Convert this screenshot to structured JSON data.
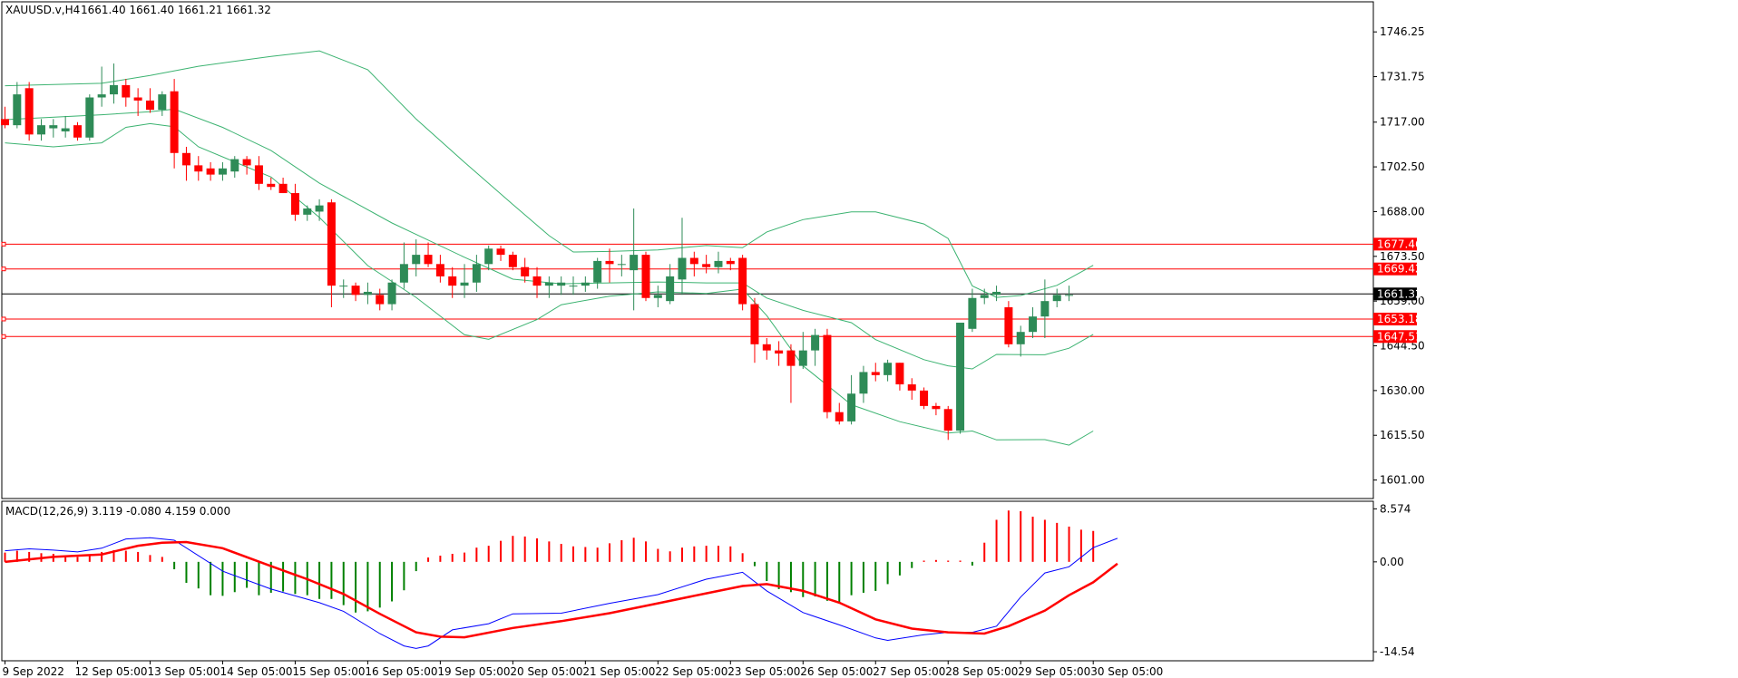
{
  "header": {
    "symbol": "XAUUSD.v,H4",
    "ohlc": "1661.40 1661.40 1661.21 1661.32"
  },
  "macd_header": {
    "label": "MACD(12,26,9) 3.119 -0.080 4.159 0.000"
  },
  "colors": {
    "bull": "#2e8b57",
    "bear": "#ff0000",
    "bands": "#3cb371",
    "hlines": "#ff0000",
    "price_line": "#000000",
    "macd_line": "#0000ff",
    "signal_line": "#ff0000",
    "hist_pos": "#ff0000",
    "hist_neg": "#008000"
  },
  "chart_data": [
    {
      "type": "candlestick",
      "title": "XAUUSD.v,H4",
      "ylim": [
        1595.0,
        1756.0
      ],
      "y_ticks": [
        "1746.25",
        "1731.75",
        "1717.00",
        "1702.50",
        "1688.00",
        "1673.50",
        "1659.00",
        "1644.50",
        "1630.00",
        "1615.50",
        "1601.00"
      ],
      "x_labels": [
        "9 Sep 2022",
        "12 Sep 05:00",
        "13 Sep 05:00",
        "14 Sep 05:00",
        "15 Sep 05:00",
        "16 Sep 05:00",
        "19 Sep 05:00",
        "20 Sep 05:00",
        "21 Sep 05:00",
        "22 Sep 05:00",
        "23 Sep 05:00",
        "26 Sep 05:00",
        "27 Sep 05:00",
        "28 Sep 05:00",
        "29 Sep 05:00",
        "30 Sep 05:00"
      ],
      "candles": [
        [
          1718,
          1722,
          1715,
          1716
        ],
        [
          1716,
          1730,
          1715,
          1726
        ],
        [
          1728,
          1730,
          1711,
          1713
        ],
        [
          1713,
          1718,
          1711,
          1716
        ],
        [
          1715,
          1718,
          1712,
          1716
        ],
        [
          1714,
          1719,
          1712,
          1715
        ],
        [
          1716,
          1717,
          1711,
          1712
        ],
        [
          1712,
          1726,
          1711,
          1725
        ],
        [
          1725,
          1735,
          1722,
          1726
        ],
        [
          1726,
          1736,
          1723,
          1729
        ],
        [
          1729,
          1731,
          1722,
          1725
        ],
        [
          1725,
          1728,
          1719,
          1724
        ],
        [
          1724,
          1728,
          1720,
          1721
        ],
        [
          1721,
          1727,
          1719,
          1726
        ],
        [
          1727,
          1731,
          1702,
          1707
        ],
        [
          1707,
          1709,
          1698,
          1703
        ],
        [
          1703,
          1706,
          1698,
          1701
        ],
        [
          1702,
          1704,
          1698,
          1700
        ],
        [
          1700,
          1704,
          1698,
          1702
        ],
        [
          1701,
          1706,
          1699,
          1705
        ],
        [
          1705,
          1706,
          1700,
          1703
        ],
        [
          1703,
          1706,
          1695,
          1697
        ],
        [
          1697,
          1699,
          1695,
          1696
        ],
        [
          1697,
          1699,
          1694,
          1694
        ],
        [
          1694,
          1697,
          1685,
          1687
        ],
        [
          1687,
          1690,
          1685,
          1689
        ],
        [
          1688,
          1692,
          1685,
          1690
        ],
        [
          1691,
          1692,
          1657,
          1664
        ],
        [
          1664,
          1666,
          1660,
          1664
        ],
        [
          1664,
          1665,
          1659,
          1661
        ],
        [
          1661,
          1665,
          1658,
          1662
        ],
        [
          1661,
          1663,
          1656,
          1658
        ],
        [
          1658,
          1666,
          1656,
          1665
        ],
        [
          1665,
          1678,
          1663,
          1671
        ],
        [
          1671,
          1679,
          1667,
          1674
        ],
        [
          1674,
          1678,
          1670,
          1671
        ],
        [
          1671,
          1674,
          1665,
          1667
        ],
        [
          1667,
          1670,
          1660,
          1664
        ],
        [
          1664,
          1671,
          1660,
          1665
        ],
        [
          1665,
          1674,
          1662,
          1671
        ],
        [
          1671,
          1677,
          1669,
          1676
        ],
        [
          1676,
          1677,
          1672,
          1674
        ],
        [
          1674,
          1675,
          1669,
          1670
        ],
        [
          1670,
          1673,
          1665,
          1667
        ],
        [
          1667,
          1670,
          1660,
          1664
        ],
        [
          1664,
          1667,
          1660,
          1665
        ],
        [
          1664,
          1667,
          1661,
          1665
        ],
        [
          1664,
          1667,
          1661,
          1664
        ],
        [
          1664,
          1667,
          1662,
          1665
        ],
        [
          1665,
          1673,
          1663,
          1672
        ],
        [
          1672,
          1676,
          1665,
          1671
        ],
        [
          1671,
          1674,
          1667,
          1671
        ],
        [
          1669,
          1689,
          1656,
          1674
        ],
        [
          1674,
          1675,
          1659,
          1660
        ],
        [
          1660,
          1664,
          1657,
          1661
        ],
        [
          1659,
          1671,
          1658,
          1667
        ],
        [
          1666,
          1686,
          1661,
          1673
        ],
        [
          1673,
          1675,
          1667,
          1671
        ],
        [
          1671,
          1674,
          1668,
          1670
        ],
        [
          1670,
          1675,
          1668,
          1672
        ],
        [
          1672,
          1673,
          1669,
          1671
        ],
        [
          1673,
          1674,
          1656,
          1658
        ],
        [
          1658,
          1660,
          1639,
          1645
        ],
        [
          1645,
          1647,
          1640,
          1643
        ],
        [
          1643,
          1646,
          1638,
          1642
        ],
        [
          1643,
          1645,
          1626,
          1638
        ],
        [
          1638,
          1649,
          1637,
          1643
        ],
        [
          1643,
          1650,
          1638,
          1648
        ],
        [
          1648,
          1650,
          1621,
          1623
        ],
        [
          1623,
          1626,
          1619,
          1620
        ],
        [
          1620,
          1635,
          1619,
          1629
        ],
        [
          1629,
          1638,
          1626,
          1636
        ],
        [
          1636,
          1639,
          1633,
          1635
        ],
        [
          1635,
          1640,
          1633,
          1639
        ],
        [
          1639,
          1639,
          1630,
          1632
        ],
        [
          1632,
          1634,
          1627,
          1630
        ],
        [
          1630,
          1631,
          1624,
          1625
        ],
        [
          1625,
          1626,
          1622,
          1624
        ],
        [
          1624,
          1625,
          1614,
          1617
        ],
        [
          1617,
          1652,
          1616,
          1652
        ],
        [
          1650,
          1663,
          1649,
          1660
        ],
        [
          1660,
          1663,
          1658,
          1661
        ],
        [
          1661,
          1664,
          1659,
          1662
        ],
        [
          1657,
          1659,
          1644,
          1645
        ],
        [
          1645,
          1651,
          1641,
          1649
        ],
        [
          1649,
          1657,
          1647,
          1654
        ],
        [
          1654,
          1666,
          1647,
          1659
        ],
        [
          1659,
          1663,
          1657,
          1661
        ],
        [
          1661,
          1664,
          1659,
          1661
        ]
      ],
      "bollinger": {
        "upper": [
          [
            0,
            1728.8
          ],
          [
            8,
            1729.6
          ],
          [
            12,
            1732.1
          ],
          [
            16,
            1735.1
          ],
          [
            22,
            1738.3
          ],
          [
            26,
            1740.1
          ],
          [
            30,
            1734
          ],
          [
            34,
            1718
          ],
          [
            38,
            1704
          ],
          [
            42,
            1690.3
          ],
          [
            45,
            1680.2
          ],
          [
            47,
            1674.9
          ],
          [
            50,
            1675.1
          ],
          [
            54,
            1675.6
          ],
          [
            58,
            1677
          ],
          [
            61,
            1676.3
          ],
          [
            63,
            1681.4
          ],
          [
            66,
            1685.4
          ],
          [
            70,
            1687.9
          ],
          [
            72,
            1687.9
          ],
          [
            76,
            1684
          ],
          [
            78,
            1679.3
          ],
          [
            80,
            1663.9
          ],
          [
            82,
            1660.2
          ],
          [
            84,
            1660.8
          ],
          [
            87,
            1664.1
          ],
          [
            90,
            1670.6
          ]
        ],
        "middle": [
          [
            0,
            1717.8
          ],
          [
            8,
            1719.4
          ],
          [
            12,
            1720.4
          ],
          [
            14,
            1721.2
          ],
          [
            18,
            1715.3
          ],
          [
            22,
            1707.8
          ],
          [
            26,
            1697.2
          ],
          [
            32,
            1684.3
          ],
          [
            38,
            1673.2
          ],
          [
            42,
            1666.1
          ],
          [
            46,
            1664.6
          ],
          [
            50,
            1664.9
          ],
          [
            54,
            1665.2
          ],
          [
            58,
            1664.9
          ],
          [
            61,
            1664.9
          ],
          [
            63,
            1660
          ],
          [
            66,
            1656
          ],
          [
            70,
            1652
          ],
          [
            72,
            1646.5
          ],
          [
            76,
            1640
          ],
          [
            78,
            1638
          ],
          [
            80,
            1637
          ],
          [
            82,
            1641.7
          ],
          [
            86,
            1641.6
          ],
          [
            88,
            1643.7
          ],
          [
            90,
            1648.2
          ]
        ],
        "lower": [
          [
            0,
            1710.3
          ],
          [
            4,
            1709
          ],
          [
            8,
            1710.3
          ],
          [
            10,
            1715.3
          ],
          [
            12,
            1716.5
          ],
          [
            14,
            1715.5
          ],
          [
            16,
            1709
          ],
          [
            22,
            1699.2
          ],
          [
            26,
            1686.1
          ],
          [
            30,
            1670.5
          ],
          [
            34,
            1660.2
          ],
          [
            38,
            1648.1
          ],
          [
            40,
            1646.6
          ],
          [
            44,
            1653
          ],
          [
            46,
            1657.8
          ],
          [
            50,
            1660.6
          ],
          [
            54,
            1662
          ],
          [
            58,
            1661.5
          ],
          [
            61,
            1662.9
          ],
          [
            63,
            1654.3
          ],
          [
            66,
            1638
          ],
          [
            70,
            1625.4
          ],
          [
            74,
            1619.9
          ],
          [
            78,
            1616.2
          ],
          [
            80,
            1616.9
          ],
          [
            82,
            1614
          ],
          [
            86,
            1614.1
          ],
          [
            88,
            1612.3
          ],
          [
            90,
            1616.9
          ]
        ]
      },
      "horizontal_levels": [
        "1677.46",
        "1669.42",
        "1653.18",
        "1647.51"
      ],
      "current_price": "1661.32"
    },
    {
      "type": "macd",
      "title": "MACD(12,26,9) 3.119 -0.080 4.159 0.000",
      "ylim": [
        -16.0,
        9.8
      ],
      "y_ticks": [
        "8.574",
        "0.00",
        "-14.54"
      ],
      "histogram": [
        1.5,
        1.8,
        1.6,
        1.4,
        1.3,
        1,
        0.8,
        1,
        1.6,
        1.9,
        1.8,
        1.6,
        1.1,
        0.8,
        -1.2,
        -3.4,
        -4.3,
        -5.4,
        -5.5,
        -4.9,
        -4.2,
        -5.4,
        -5,
        -4.8,
        -5.2,
        -5.4,
        -6,
        -6,
        -7,
        -8.2,
        -8,
        -7.4,
        -6.4,
        -4.6,
        -1.5,
        0.7,
        1,
        1.3,
        1.5,
        2.3,
        2.6,
        3.4,
        4.2,
        4.1,
        3.8,
        3.3,
        2.9,
        2.5,
        2.4,
        2.3,
        3,
        3.5,
        3.9,
        3.3,
        2.1,
        1.7,
        2.3,
        2.5,
        2.6,
        2.6,
        2.5,
        1.4,
        -0.7,
        -3.1,
        -4.4,
        -4.9,
        -5.7,
        -5.6,
        -6.3,
        -6.7,
        -5.4,
        -5,
        -4.7,
        -3.6,
        -2.2,
        -1,
        0.2,
        0.3,
        0.2,
        0.2,
        -0.6,
        3.1,
        6.8,
        8.3,
        8.2,
        7.3,
        6.8,
        6.3,
        5.7,
        5.2,
        5
      ],
      "macd_line": [
        [
          0,
          1.8
        ],
        [
          2,
          2.1
        ],
        [
          4,
          1.9
        ],
        [
          6,
          1.6
        ],
        [
          8,
          2.2
        ],
        [
          10,
          3.7
        ],
        [
          12,
          3.9
        ],
        [
          14,
          3.5
        ],
        [
          18,
          -1.5
        ],
        [
          22,
          -4.4
        ],
        [
          26,
          -6.6
        ],
        [
          28,
          -8
        ],
        [
          31,
          -11.6
        ],
        [
          33,
          -13.6
        ],
        [
          34,
          -14
        ],
        [
          35,
          -13.6
        ],
        [
          37,
          -11
        ],
        [
          40,
          -10
        ],
        [
          42,
          -8.4
        ],
        [
          46,
          -8.3
        ],
        [
          50,
          -6.7
        ],
        [
          54,
          -5.3
        ],
        [
          58,
          -2.8
        ],
        [
          61,
          -1.7
        ],
        [
          63,
          -4.7
        ],
        [
          66,
          -8.2
        ],
        [
          69,
          -10.2
        ],
        [
          72,
          -12.3
        ],
        [
          73,
          -12.7
        ],
        [
          76,
          -11.8
        ],
        [
          78,
          -11.4
        ],
        [
          80,
          -11.4
        ],
        [
          82,
          -10.4
        ],
        [
          84,
          -5.7
        ],
        [
          86,
          -1.8
        ],
        [
          88,
          -0.8
        ],
        [
          90,
          2.3
        ],
        [
          92,
          3.8
        ]
      ],
      "signal_line": [
        [
          0,
          0
        ],
        [
          4,
          0.8
        ],
        [
          8,
          1.2
        ],
        [
          11,
          2.6
        ],
        [
          13,
          3.1
        ],
        [
          15,
          3.2
        ],
        [
          18,
          2.2
        ],
        [
          22,
          -0.7
        ],
        [
          25,
          -2.8
        ],
        [
          28,
          -5.2
        ],
        [
          31,
          -8.4
        ],
        [
          34,
          -11.4
        ],
        [
          36,
          -12.1
        ],
        [
          38,
          -12.2
        ],
        [
          42,
          -10.7
        ],
        [
          46,
          -9.6
        ],
        [
          50,
          -8.3
        ],
        [
          54,
          -6.7
        ],
        [
          58,
          -5.1
        ],
        [
          61,
          -3.9
        ],
        [
          63,
          -3.6
        ],
        [
          66,
          -4.7
        ],
        [
          69,
          -6.6
        ],
        [
          72,
          -9.3
        ],
        [
          75,
          -10.8
        ],
        [
          78,
          -11.4
        ],
        [
          81,
          -11.6
        ],
        [
          83,
          -10.4
        ],
        [
          86,
          -7.9
        ],
        [
          88,
          -5.4
        ],
        [
          90,
          -3.3
        ],
        [
          92,
          -0.3
        ]
      ]
    }
  ]
}
